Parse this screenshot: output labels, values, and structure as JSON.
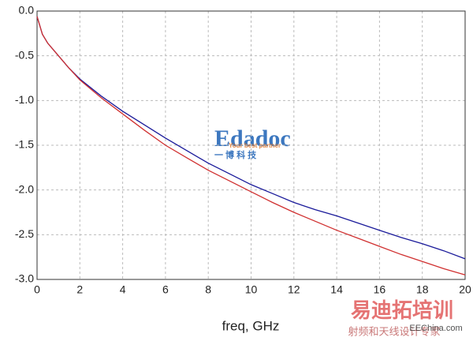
{
  "chart_data": {
    "type": "line",
    "x_label": "freq, GHz",
    "x": [
      0,
      0.25,
      0.5,
      1,
      1.5,
      2,
      3,
      4,
      5,
      6,
      7,
      8,
      9,
      10,
      11,
      12,
      13,
      14,
      15,
      16,
      17,
      18,
      19,
      20
    ],
    "series": [
      {
        "color": "#1a1a9a",
        "values": [
          -0.06,
          -0.26,
          -0.36,
          -0.5,
          -0.64,
          -0.76,
          -0.95,
          -1.12,
          -1.27,
          -1.42,
          -1.56,
          -1.7,
          -1.82,
          -1.94,
          -2.04,
          -2.14,
          -2.22,
          -2.29,
          -2.37,
          -2.45,
          -2.53,
          -2.6,
          -2.68,
          -2.77
        ]
      },
      {
        "color": "#d03030",
        "values": [
          -0.06,
          -0.26,
          -0.36,
          -0.5,
          -0.64,
          -0.77,
          -0.97,
          -1.15,
          -1.33,
          -1.5,
          -1.64,
          -1.78,
          -1.9,
          -2.02,
          -2.14,
          -2.25,
          -2.35,
          -2.45,
          -2.54,
          -2.63,
          -2.72,
          -2.8,
          -2.88,
          -2.95
        ]
      }
    ],
    "xlim": [
      0,
      20
    ],
    "xticks": [
      0,
      2,
      4,
      6,
      8,
      10,
      12,
      14,
      16,
      18,
      20
    ],
    "ylim": [
      -3,
      0
    ],
    "yticks": [
      {
        "value": -3,
        "label": "-3.0"
      },
      -2.5,
      {
        "value": -2,
        "label": "-2.0"
      },
      -1.5,
      {
        "value": -1,
        "label": "-1.0"
      },
      -0.5,
      {
        "value": 0,
        "label": "0.0"
      }
    ],
    "grid": true,
    "annotations": [
      "Edadoc",
      "Your best partner",
      "一 博 科 技",
      "易迪拓培训",
      "射频和天线设计专家",
      "EEChina.com"
    ]
  }
}
